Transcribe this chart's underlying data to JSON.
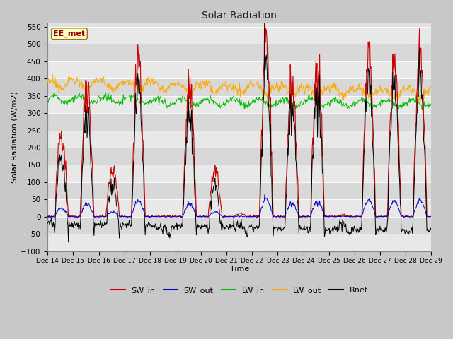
{
  "title": "Solar Radiation",
  "xlabel": "Time",
  "ylabel": "Solar Radiation (W/m2)",
  "ylim": [
    -100,
    560
  ],
  "yticks": [
    -100,
    -50,
    0,
    50,
    100,
    150,
    200,
    250,
    300,
    350,
    400,
    450,
    500,
    550
  ],
  "colors": {
    "SW_in": "#cc0000",
    "SW_out": "#0000cc",
    "LW_in": "#00bb00",
    "LW_out": "#ffaa00",
    "Rnet": "#000000"
  },
  "legend_labels": [
    "SW_in",
    "SW_out",
    "LW_in",
    "LW_out",
    "Rnet"
  ],
  "watermark": "EE_met",
  "n_days": 15,
  "start_day": 14,
  "fig_bg": "#c8c8c8",
  "plot_bg": "#e0e0e0",
  "grid_color": "#f5f5f5"
}
